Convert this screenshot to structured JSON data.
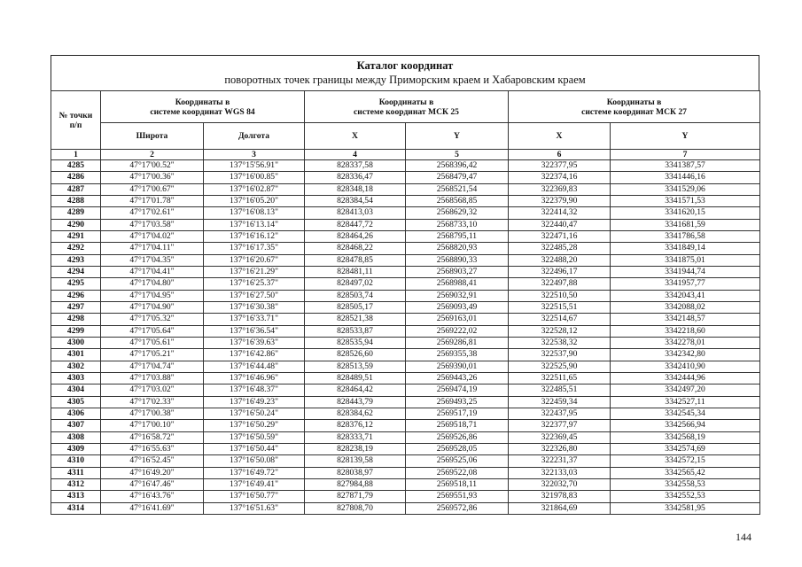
{
  "header": {
    "title": "Каталог координат",
    "subtitle": "поворотных точек границы между  Приморским краем и Хабаровским краем"
  },
  "table": {
    "groups": [
      "Координаты в\nсистеме координат WGS 84",
      "Координаты в\nсистеме координат МСК 25",
      "Координаты в\nсистеме координат МСК 27"
    ],
    "first_column": "№ точки\nп/п",
    "subheaders": [
      "Широта",
      "Долгота",
      "X",
      "Y",
      "X",
      "Y"
    ],
    "column_numbers": [
      "1",
      "2",
      "3",
      "4",
      "5",
      "6",
      "7"
    ],
    "rows": [
      [
        "4285",
        "47°17'00.52\"",
        "137°15'56.91\"",
        "828337,58",
        "2568396,42",
        "322377,95",
        "3341387,57"
      ],
      [
        "4286",
        "47°17'00.36\"",
        "137°16'00.85\"",
        "828336,47",
        "2568479,47",
        "322374,16",
        "3341446,16"
      ],
      [
        "4287",
        "47°17'00.67\"",
        "137°16'02.87\"",
        "828348,18",
        "2568521,54",
        "322369,83",
        "3341529,06"
      ],
      [
        "4288",
        "47°17'01.78\"",
        "137°16'05.20\"",
        "828384,54",
        "2568568,85",
        "322379,90",
        "3341571,53"
      ],
      [
        "4289",
        "47°17'02.61\"",
        "137°16'08.13\"",
        "828413,03",
        "2568629,32",
        "322414,32",
        "3341620,15"
      ],
      [
        "4290",
        "47°17'03.58\"",
        "137°16'13.14\"",
        "828447,72",
        "2568733,10",
        "322440,47",
        "3341681,59"
      ],
      [
        "4291",
        "47°17'04.02\"",
        "137°16'16.12\"",
        "828464,26",
        "2568795,11",
        "322471,16",
        "3341786,58"
      ],
      [
        "4292",
        "47°17'04.11\"",
        "137°16'17.35\"",
        "828468,22",
        "2568820,93",
        "322485,28",
        "3341849,14"
      ],
      [
        "4293",
        "47°17'04.35\"",
        "137°16'20.67\"",
        "828478,85",
        "2568890,33",
        "322488,20",
        "3341875,01"
      ],
      [
        "4294",
        "47°17'04.41\"",
        "137°16'21.29\"",
        "828481,11",
        "2568903,27",
        "322496,17",
        "3341944,74"
      ],
      [
        "4295",
        "47°17'04.80\"",
        "137°16'25.37\"",
        "828497,02",
        "2568988,41",
        "322497,88",
        "3341957,77"
      ],
      [
        "4296",
        "47°17'04.95\"",
        "137°16'27.50\"",
        "828503,74",
        "2569032,91",
        "322510,50",
        "3342043,41"
      ],
      [
        "4297",
        "47°17'04.90\"",
        "137°16'30.38\"",
        "828505,17",
        "2569093,49",
        "322515,51",
        "3342088,02"
      ],
      [
        "4298",
        "47°17'05.32\"",
        "137°16'33.71\"",
        "828521,38",
        "2569163,01",
        "322514,67",
        "3342148,57"
      ],
      [
        "4299",
        "47°17'05.64\"",
        "137°16'36.54\"",
        "828533,87",
        "2569222,02",
        "322528,12",
        "3342218,60"
      ],
      [
        "4300",
        "47°17'05.61\"",
        "137°16'39.63\"",
        "828535,94",
        "2569286,81",
        "322538,32",
        "3342278,01"
      ],
      [
        "4301",
        "47°17'05.21\"",
        "137°16'42.86\"",
        "828526,60",
        "2569355,38",
        "322537,90",
        "3342342,80"
      ],
      [
        "4302",
        "47°17'04.74\"",
        "137°16'44.48\"",
        "828513,59",
        "2569390,01",
        "322525,90",
        "3342410,90"
      ],
      [
        "4303",
        "47°17'03.88\"",
        "137°16'46.96\"",
        "828489,51",
        "2569443,26",
        "322511,65",
        "3342444,96"
      ],
      [
        "4304",
        "47°17'03.02\"",
        "137°16'48.37\"",
        "828464,42",
        "2569474,19",
        "322485,51",
        "3342497,20"
      ],
      [
        "4305",
        "47°17'02.33\"",
        "137°16'49.23\"",
        "828443,79",
        "2569493,25",
        "322459,34",
        "3342527,11"
      ],
      [
        "4306",
        "47°17'00.38\"",
        "137°16'50.24\"",
        "828384,62",
        "2569517,19",
        "322437,95",
        "3342545,34"
      ],
      [
        "4307",
        "47°17'00.10\"",
        "137°16'50.29\"",
        "828376,12",
        "2569518,71",
        "322377,97",
        "3342566,94"
      ],
      [
        "4308",
        "47°16'58.72\"",
        "137°16'50.59\"",
        "828333,71",
        "2569526,86",
        "322369,45",
        "3342568,19"
      ],
      [
        "4309",
        "47°16'55.63\"",
        "137°16'50.44\"",
        "828238,19",
        "2569528,05",
        "322326,80",
        "3342574,69"
      ],
      [
        "4310",
        "47°16'52.45\"",
        "137°16'50.08\"",
        "828139,58",
        "2569525,06",
        "322231,37",
        "3342572,15"
      ],
      [
        "4311",
        "47°16'49.20\"",
        "137°16'49.72\"",
        "828038,97",
        "2569522,08",
        "322133,03",
        "3342565,42"
      ],
      [
        "4312",
        "47°16'47.46\"",
        "137°16'49.41\"",
        "827984,88",
        "2569518,11",
        "322032,70",
        "3342558,53"
      ],
      [
        "4313",
        "47°16'43.76\"",
        "137°16'50.77\"",
        "827871,79",
        "2569551,93",
        "321978,83",
        "3342552,53"
      ],
      [
        "4314",
        "47°16'41.69\"",
        "137°16'51.63\"",
        "827808,70",
        "2569572,86",
        "321864,69",
        "3342581,95"
      ]
    ]
  },
  "footer": {
    "page_number": "144"
  }
}
